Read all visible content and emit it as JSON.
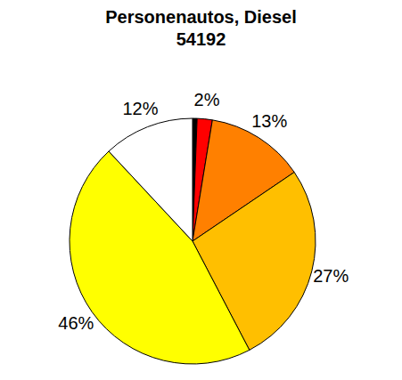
{
  "chart_data": {
    "type": "pie",
    "title": "Personenautos, Diesel",
    "subtitle": "54192",
    "values": [
      0.6,
      2,
      13,
      27,
      46,
      12
    ],
    "value_labels": [
      null,
      "2%",
      "13%",
      "27%",
      "46%",
      "12%"
    ],
    "colors": [
      "#000000",
      "#ff0000",
      "#ff8000",
      "#ffbf00",
      "#ffff00",
      "#ffffff"
    ]
  }
}
